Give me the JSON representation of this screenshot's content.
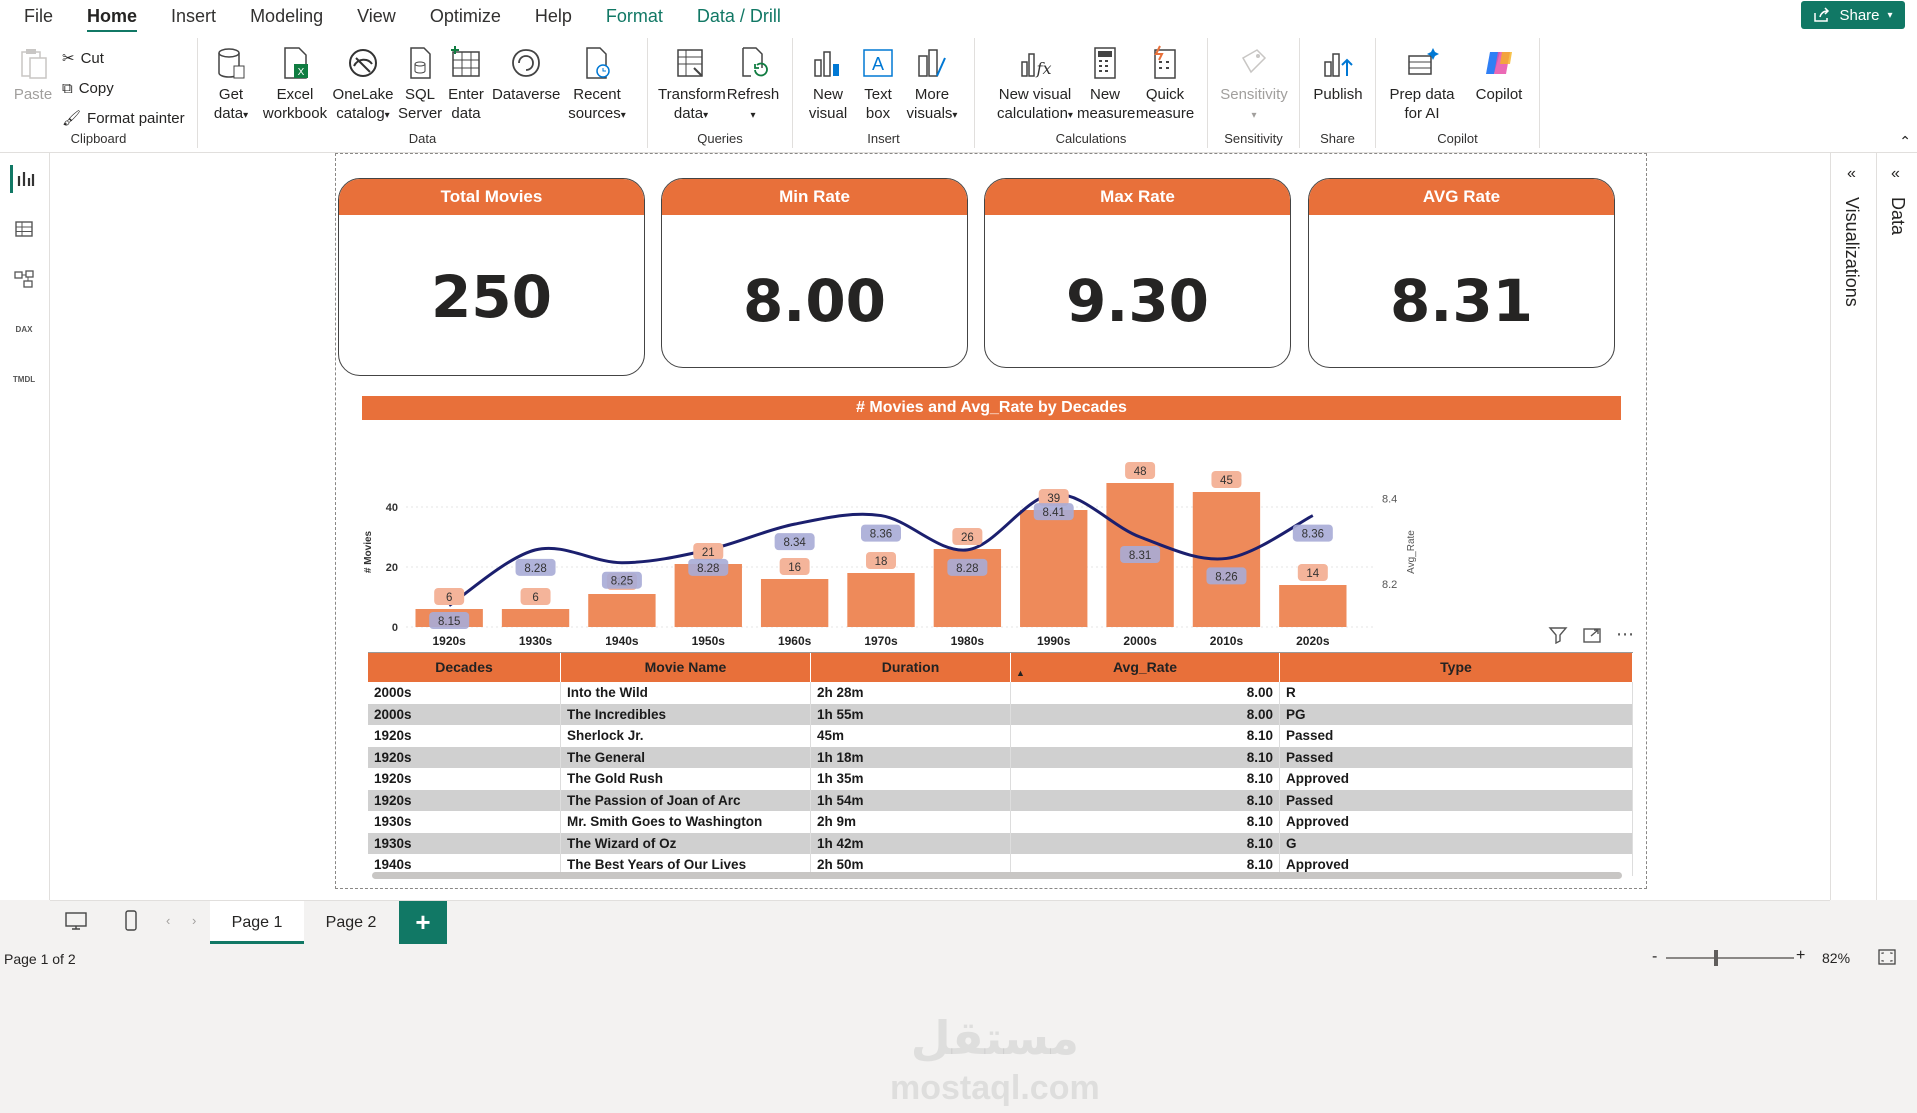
{
  "menu": {
    "tabs": [
      "File",
      "Home",
      "Insert",
      "Modeling",
      "View",
      "Optimize",
      "Help"
    ],
    "context_tabs": [
      "Format",
      "Data / Drill"
    ],
    "share": "Share"
  },
  "ribbon": {
    "clipboard": {
      "paste": "Paste",
      "cut": "Cut",
      "copy": "Copy",
      "format_painter": "Format painter",
      "label": "Clipboard"
    },
    "data": {
      "get_data": "Get data",
      "excel": "Excel workbook",
      "onelake": "OneLake catalog",
      "sql": "SQL Server",
      "enter": "Enter data",
      "dataverse": "Dataverse",
      "recent": "Recent sources",
      "label": "Data"
    },
    "queries": {
      "transform": "Transform data",
      "refresh": "Refresh",
      "label": "Queries"
    },
    "insert": {
      "new_visual": "New visual",
      "text_box": "Text box",
      "more": "More visuals",
      "label": "Insert"
    },
    "calculations": {
      "new_visual_calc": "New visual calculation",
      "new_measure": "New measure",
      "quick_measure": "Quick measure",
      "label": "Calculations"
    },
    "sensitivity": {
      "btn": "Sensitivity",
      "label": "Sensitivity"
    },
    "share": {
      "publish": "Publish",
      "label": "Share"
    },
    "copilot": {
      "prep": "Prep data for AI",
      "copilot": "Copilot",
      "label": "Copilot"
    }
  },
  "cards": [
    {
      "title": "Total Movies",
      "value": "250"
    },
    {
      "title": "Min Rate",
      "value": "8.00"
    },
    {
      "title": "Max Rate",
      "value": "9.30"
    },
    {
      "title": "AVG Rate",
      "value": "8.31"
    }
  ],
  "chart_data": {
    "type": "bar",
    "title": "# Movies and Avg_Rate by Decades",
    "categories": [
      "1920s",
      "1930s",
      "1940s",
      "1950s",
      "1960s",
      "1970s",
      "1980s",
      "1990s",
      "2000s",
      "2010s",
      "2020s"
    ],
    "series": [
      {
        "name": "# Movies",
        "type": "bar",
        "axis": "left",
        "color": "#ee8a5a",
        "values": [
          6,
          6,
          11,
          21,
          16,
          18,
          26,
          39,
          48,
          45,
          14
        ]
      },
      {
        "name": "Avg_Rate",
        "type": "line",
        "axis": "right",
        "color": "#1b1f6e",
        "values": [
          8.15,
          8.28,
          8.25,
          8.28,
          8.34,
          8.36,
          8.28,
          8.41,
          8.31,
          8.26,
          8.36
        ]
      }
    ],
    "ylabel": "# Movies",
    "y2label": "Avg_Rate",
    "yticks": [
      "0",
      "20",
      "40"
    ],
    "y2ticks": [
      "8.2",
      "8.4"
    ],
    "ylim": [
      0,
      50
    ],
    "y2lim": [
      8.1,
      8.45
    ]
  },
  "table": {
    "columns": [
      "Decades",
      "Movie Name",
      "Duration",
      "Avg_Rate",
      "Type"
    ],
    "rows": [
      [
        "2000s",
        "Into the Wild",
        "2h 28m",
        "8.00",
        "R"
      ],
      [
        "2000s",
        "The Incredibles",
        "1h 55m",
        "8.00",
        "PG"
      ],
      [
        "1920s",
        "Sherlock Jr.",
        "45m",
        "8.10",
        "Passed"
      ],
      [
        "1920s",
        "The General",
        "1h 18m",
        "8.10",
        "Passed"
      ],
      [
        "1920s",
        "The Gold Rush",
        "1h 35m",
        "8.10",
        "Approved"
      ],
      [
        "1920s",
        "The Passion of Joan of Arc",
        "1h 54m",
        "8.10",
        "Passed"
      ],
      [
        "1930s",
        "Mr. Smith Goes to Washington",
        "2h 9m",
        "8.10",
        "Approved"
      ],
      [
        "1930s",
        "The Wizard of Oz",
        "1h 42m",
        "8.10",
        "G"
      ],
      [
        "1940s",
        "The Best Years of Our Lives",
        "2h 50m",
        "8.10",
        "Approved"
      ]
    ]
  },
  "panes": {
    "visualizations": "Visualizations",
    "data": "Data"
  },
  "pages": [
    "Page 1",
    "Page 2"
  ],
  "status": {
    "page": "Page 1 of 2",
    "zoom": "82%"
  },
  "watermark": {
    "ar": "مستقل",
    "en": "mostaql.com"
  }
}
